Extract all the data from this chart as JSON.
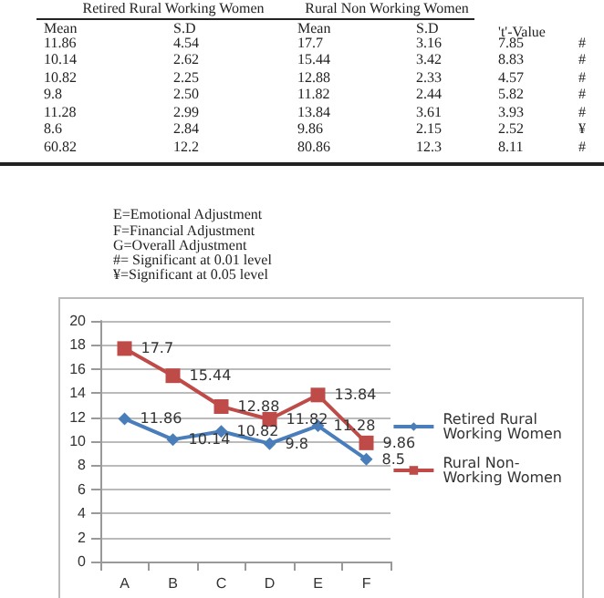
{
  "chart_data": {
    "type": "line",
    "categories": [
      "A",
      "B",
      "C",
      "D",
      "E",
      "F"
    ],
    "series": [
      {
        "name": "Retired Rural Working Women",
        "color": "#4a7ebb",
        "marker": "diamond",
        "values": [
          11.86,
          10.14,
          10.82,
          9.8,
          11.28,
          8.5
        ]
      },
      {
        "name": "Rural Non- Working Women",
        "color": "#be4b48",
        "marker": "square",
        "values": [
          17.7,
          15.44,
          12.88,
          11.82,
          13.84,
          9.86
        ]
      }
    ],
    "ylim": [
      0,
      20
    ],
    "yticks": [
      0,
      2,
      4,
      6,
      8,
      10,
      12,
      14,
      16,
      18,
      20
    ],
    "grid": "y",
    "legend": "right",
    "data_labels": true,
    "annotations": [
      "Retired Rural Working Women",
      "Rural Non Working Women",
      "Mean",
      "S.D",
      "Mean",
      "S.D",
      "'t'-Value",
      "11.86",
      "4.54",
      "17.7",
      "3.16",
      "7.85",
      "#",
      "10.14",
      "2.62",
      "15.44",
      "3.42",
      "8.83",
      "#",
      "10.82",
      "2.25",
      "12.88",
      "2.33",
      "4.57",
      "#",
      "9.8",
      "2.50",
      "11.82",
      "2.44",
      "5.82",
      "#",
      "11.28",
      "2.99",
      "13.84",
      "3.61",
      "3.93",
      "#",
      "8.6",
      "2.84",
      "9.86",
      "2.15",
      "2.52",
      "¥",
      "60.82",
      "12.2",
      "80.86",
      "12.3",
      "8.11",
      "#",
      "E=Emotional Adjustment",
      "F=Financial Adjustment",
      "G=Overall Adjustment",
      "#= Significant at 0.01 level",
      "¥=Significant at 0.05 level"
    ]
  }
}
